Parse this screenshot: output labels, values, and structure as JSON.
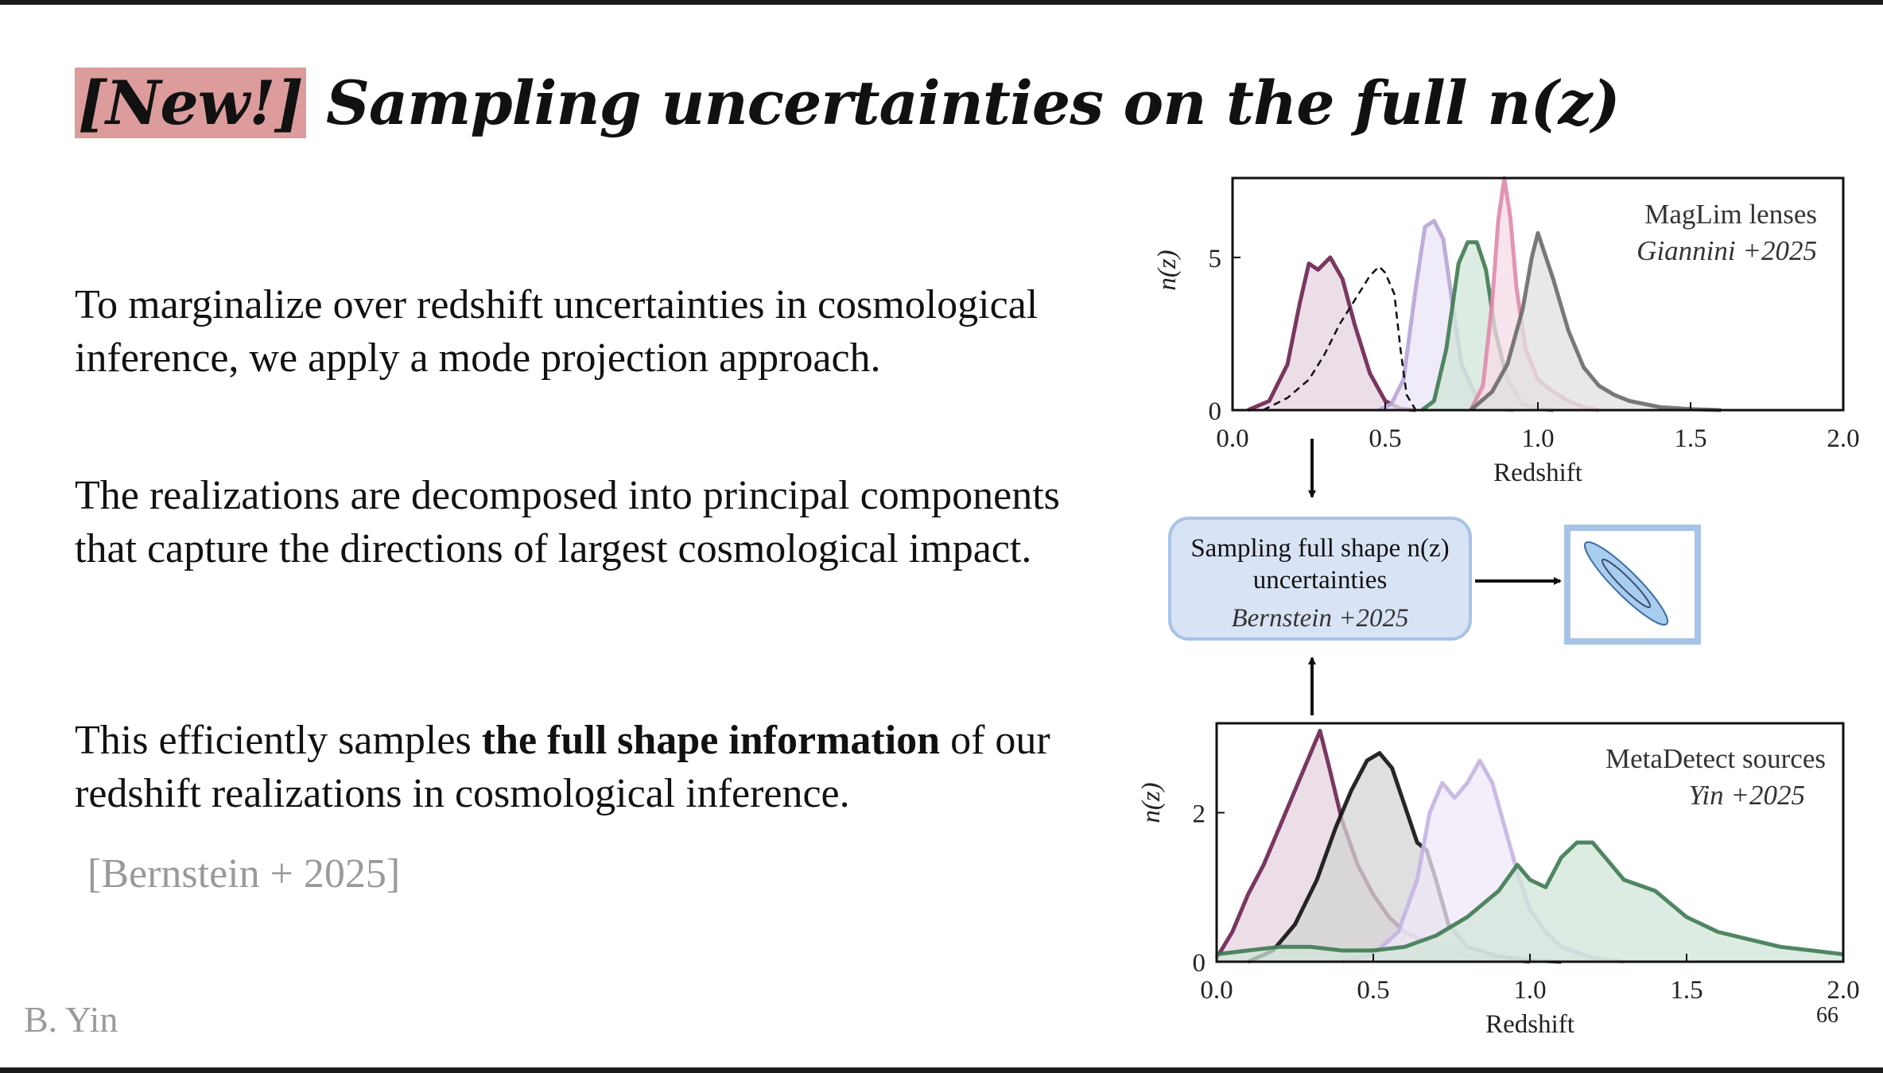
{
  "slide": {
    "title_highlight": "[New!]",
    "title_rest": " Sampling uncertainties on the full n(z)",
    "para1": "To marginalize over redshift uncertainties in cosmological inference, we apply a mode projection approach.",
    "para2": "The realizations are decomposed into principal components that capture the directions of largest cosmological impact.",
    "para3_pre": "This efficiently samples ",
    "para3_bold": "the full shape information",
    "para3_post": " of our redshift realizations in cosmological inference.",
    "citation": "[Bernstein + 2025]",
    "author": "B. Yin",
    "page_number": "66"
  },
  "flow": {
    "box_line1": "Sampling full shape n(z)",
    "box_line2": "uncertainties",
    "box_ref": "Bernstein +2025"
  },
  "colors": {
    "highlight": "#dc9c9c",
    "box_fill": "#d8e4f5",
    "box_border": "#a7c3e6"
  },
  "chart_data": [
    {
      "type": "area",
      "name": "maglim",
      "legend_line1": "MagLim lenses",
      "legend_line2": "Giannini +2025",
      "xlabel": "Redshift",
      "ylabel": "n(z)",
      "xlim": [
        0,
        2
      ],
      "ylim": [
        0,
        7.6
      ],
      "xticks": [
        "0.0",
        "0.5",
        "1.0",
        "1.5",
        "2.0"
      ],
      "yticks": [
        "0",
        "5"
      ],
      "series": [
        {
          "name": "bin1",
          "color": "#6b2450",
          "fill": "#e6d3df",
          "x": [
            0.05,
            0.12,
            0.18,
            0.22,
            0.25,
            0.28,
            0.32,
            0.36,
            0.4,
            0.45,
            0.5,
            0.55,
            0.6
          ],
          "y": [
            0,
            0.3,
            1.5,
            3.5,
            4.8,
            4.6,
            5.0,
            4.3,
            2.8,
            1.2,
            0.3,
            0.05,
            0
          ]
        },
        {
          "name": "bin2",
          "color": "#b7a5d6",
          "fill": "#ebe4f5",
          "x": [
            0.48,
            0.52,
            0.56,
            0.6,
            0.63,
            0.66,
            0.69,
            0.72,
            0.75,
            0.8,
            0.86,
            0.92
          ],
          "y": [
            0,
            0.2,
            1.0,
            4.0,
            6.0,
            6.2,
            5.6,
            3.5,
            1.5,
            0.4,
            0.05,
            0
          ]
        },
        {
          "name": "bin3",
          "color": "#3e7a52",
          "fill": "#d2e5d8",
          "x": [
            0.62,
            0.66,
            0.7,
            0.74,
            0.77,
            0.8,
            0.83,
            0.86,
            0.9,
            0.95,
            1.0,
            1.05
          ],
          "y": [
            0,
            0.3,
            2.0,
            4.8,
            5.5,
            5.5,
            4.6,
            2.6,
            1.0,
            0.2,
            0.05,
            0
          ]
        },
        {
          "name": "bin4",
          "color": "#e08aac",
          "fill": "#f6dbe6",
          "x": [
            0.78,
            0.82,
            0.85,
            0.87,
            0.89,
            0.91,
            0.93,
            0.96,
            1.0,
            1.05,
            1.1,
            1.15,
            1.2
          ],
          "y": [
            0,
            0.8,
            3.5,
            6.2,
            7.6,
            6.3,
            4.0,
            2.0,
            1.0,
            0.6,
            0.3,
            0.1,
            0
          ]
        },
        {
          "name": "bin5",
          "color": "#6a6a6a",
          "fill": "#e0e0e0",
          "x": [
            0.78,
            0.85,
            0.9,
            0.95,
            0.98,
            1.0,
            1.05,
            1.1,
            1.15,
            1.2,
            1.25,
            1.3,
            1.4,
            1.5,
            1.6
          ],
          "y": [
            0,
            0.6,
            1.5,
            3.3,
            5.0,
            5.8,
            4.3,
            2.6,
            1.4,
            0.8,
            0.5,
            0.3,
            0.1,
            0.03,
            0
          ]
        }
      ],
      "dashed": {
        "name": "dashed",
        "x": [
          0.1,
          0.18,
          0.25,
          0.3,
          0.35,
          0.4,
          0.45,
          0.48,
          0.5,
          0.53,
          0.55,
          0.57,
          0.6
        ],
        "y": [
          0,
          0.4,
          1.0,
          1.8,
          2.8,
          3.6,
          4.4,
          4.7,
          4.5,
          3.8,
          2.0,
          0.5,
          0
        ]
      }
    },
    {
      "type": "area",
      "name": "metadetect",
      "legend_line1": "MetaDetect sources",
      "legend_line2": "Yin +2025",
      "xlabel": "Redshift",
      "ylabel": "n(z)",
      "xlim": [
        0,
        2
      ],
      "ylim": [
        0,
        3.2
      ],
      "xticks": [
        "0.0",
        "0.5",
        "1.0",
        "1.5",
        "2.0"
      ],
      "yticks": [
        "0",
        "2"
      ],
      "series": [
        {
          "name": "bin1",
          "color": "#6b2450",
          "fill": "#e6d3df",
          "x": [
            0.0,
            0.05,
            0.1,
            0.15,
            0.2,
            0.25,
            0.28,
            0.3,
            0.33,
            0.36,
            0.4,
            0.45,
            0.5,
            0.55,
            0.6,
            0.7,
            0.8,
            1.0
          ],
          "y": [
            0.05,
            0.4,
            0.9,
            1.3,
            1.8,
            2.3,
            2.6,
            2.8,
            3.1,
            2.6,
            1.9,
            1.3,
            0.9,
            0.6,
            0.4,
            0.2,
            0.08,
            0
          ]
        },
        {
          "name": "bin2",
          "color": "#111111",
          "fill": "#d4d4d4",
          "x": [
            0.1,
            0.18,
            0.25,
            0.32,
            0.38,
            0.43,
            0.48,
            0.52,
            0.56,
            0.6,
            0.64,
            0.67,
            0.7,
            0.74,
            0.8,
            0.9,
            1.0,
            1.1
          ],
          "y": [
            0,
            0.15,
            0.5,
            1.1,
            1.8,
            2.3,
            2.7,
            2.8,
            2.6,
            2.1,
            1.6,
            1.5,
            1.1,
            0.5,
            0.2,
            0.07,
            0.02,
            0
          ]
        },
        {
          "name": "bin3",
          "color": "#c4b4e2",
          "fill": "#efe8f8",
          "x": [
            0.4,
            0.5,
            0.58,
            0.64,
            0.68,
            0.72,
            0.76,
            0.8,
            0.84,
            0.88,
            0.92,
            0.96,
            1.0,
            1.05,
            1.1,
            1.2,
            1.3
          ],
          "y": [
            0,
            0.1,
            0.4,
            1.1,
            2.0,
            2.4,
            2.2,
            2.4,
            2.7,
            2.4,
            1.8,
            1.2,
            0.7,
            0.4,
            0.2,
            0.05,
            0
          ]
        },
        {
          "name": "bin4",
          "color": "#3e7a52",
          "fill": "#d2e5d8",
          "x": [
            0.0,
            0.1,
            0.2,
            0.3,
            0.4,
            0.5,
            0.6,
            0.7,
            0.8,
            0.9,
            0.96,
            1.0,
            1.05,
            1.1,
            1.15,
            1.2,
            1.25,
            1.3,
            1.4,
            1.5,
            1.6,
            1.7,
            1.8,
            1.9,
            2.0
          ],
          "y": [
            0.1,
            0.15,
            0.2,
            0.2,
            0.15,
            0.15,
            0.2,
            0.35,
            0.6,
            0.95,
            1.3,
            1.1,
            1.0,
            1.4,
            1.6,
            1.6,
            1.35,
            1.1,
            0.95,
            0.6,
            0.4,
            0.3,
            0.2,
            0.15,
            0.1
          ]
        }
      ]
    }
  ]
}
